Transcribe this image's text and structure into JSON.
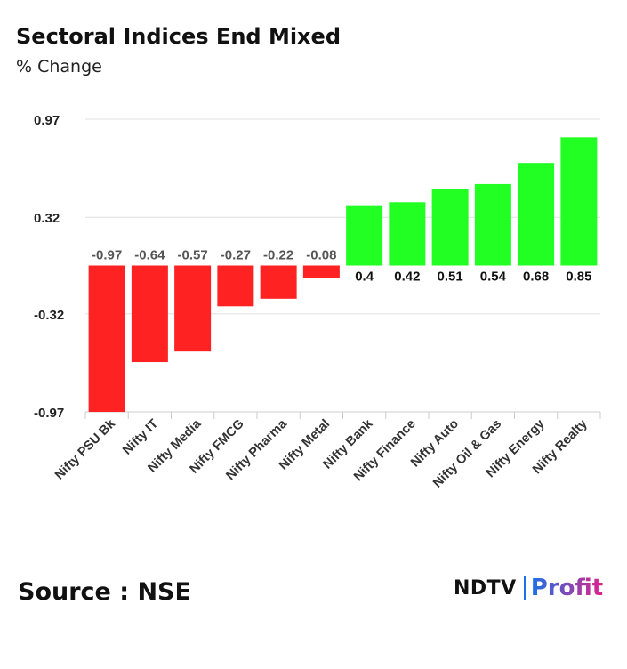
{
  "header": {
    "title": "Sectoral Indices End Mixed",
    "subtitle": "% Change"
  },
  "footer": {
    "source": "Source : NSE",
    "brand_ndtv": "NDTV",
    "brand_profit": "Profit"
  },
  "colors": {
    "positive": "#22ff22",
    "negative": "#ff2222",
    "grid": "#e0e0e0",
    "brand_blue": "#1a73e8",
    "brand_pink": "#e0218a"
  },
  "chart_data": {
    "type": "bar",
    "title": "Sectoral Indices End Mixed",
    "ylabel": "% Change",
    "xlabel": "",
    "categories": [
      "Nifty PSU Bk",
      "Nifty IT",
      "Nifty Media",
      "Nifty FMCG",
      "Nifty Pharma",
      "Nifty Metal",
      "Nifty Bank",
      "Nifty Finance",
      "Nifty Auto",
      "Nifty Oil & Gas",
      "Nifty Energy",
      "Nifty Realty"
    ],
    "values": [
      -0.97,
      -0.64,
      -0.57,
      -0.27,
      -0.22,
      -0.08,
      0.4,
      0.42,
      0.51,
      0.54,
      0.68,
      0.85
    ],
    "value_labels": [
      "-0.97",
      "-0.64",
      "-0.57",
      "-0.27",
      "-0.22",
      "-0.08",
      "0.4",
      "0.42",
      "0.51",
      "0.54",
      "0.68",
      "0.85"
    ],
    "y_ticks": [
      0.97,
      0.32,
      -0.32,
      -0.97
    ],
    "y_tick_labels": [
      "0.97",
      "0.32",
      "-0.32",
      "-0.97"
    ],
    "ylim": [
      -0.97,
      0.97
    ],
    "grid": true,
    "legend": "none"
  }
}
